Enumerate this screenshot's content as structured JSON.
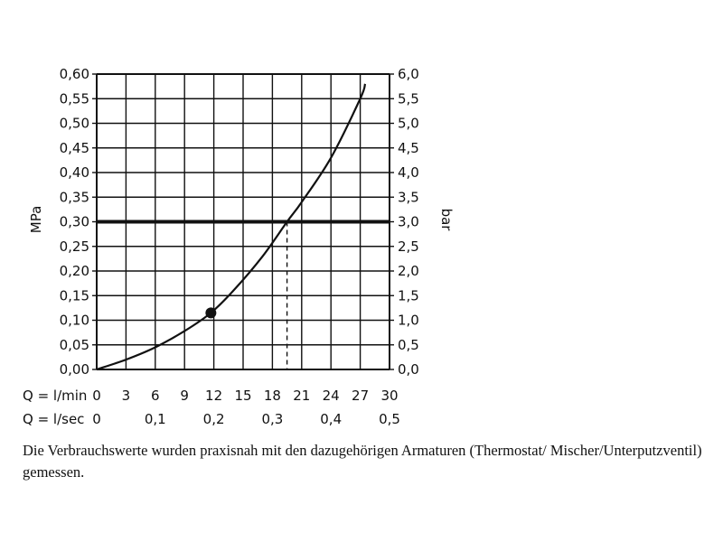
{
  "chart_data": {
    "type": "line",
    "left_axis": {
      "label": "MPa",
      "ticks": [
        "0,00",
        "0,05",
        "0,10",
        "0,15",
        "0,20",
        "0,25",
        "0,30",
        "0,35",
        "0,40",
        "0,45",
        "0,50",
        "0,55",
        "0,60"
      ],
      "range": [
        0,
        0.6
      ]
    },
    "right_axis": {
      "label": "bar",
      "ticks": [
        "0,0",
        "0,5",
        "1,0",
        "1,5",
        "2,0",
        "2,5",
        "3,0",
        "3,5",
        "4,0",
        "4,5",
        "5,0",
        "5,5",
        "6,0"
      ],
      "range": [
        0,
        6
      ]
    },
    "x_axis_lmin": {
      "label": "Q = l/min",
      "ticks": [
        "0",
        "3",
        "6",
        "9",
        "12",
        "15",
        "18",
        "21",
        "24",
        "27",
        "30"
      ],
      "range": [
        0,
        30
      ]
    },
    "x_axis_lsec": {
      "label": "Q = l/sec",
      "ticks": [
        "0",
        "0,1",
        "0,2",
        "0,3",
        "0,4",
        "0,5"
      ],
      "tick_values_lmin": [
        0,
        6,
        12,
        18,
        24,
        30
      ]
    },
    "grid": true,
    "series": [
      {
        "x": [
          0,
          3,
          6,
          9,
          11.7,
          14,
          17,
          19.5,
          21,
          24,
          27,
          27.5
        ],
        "y": [
          0,
          0.02,
          0.045,
          0.078,
          0.115,
          0.16,
          0.23,
          0.3,
          0.34,
          0.43,
          0.55,
          0.58
        ]
      }
    ],
    "marker_point": {
      "x": 11.7,
      "y": 0.115
    },
    "reference_line_y": 0.3,
    "intersection_x": 19.5
  },
  "caption": "Die Verbrauchswerte wurden praxisnah mit den dazugehörigen Armaturen (Thermostat/ Mischer/Unterputzventil) gemessen."
}
